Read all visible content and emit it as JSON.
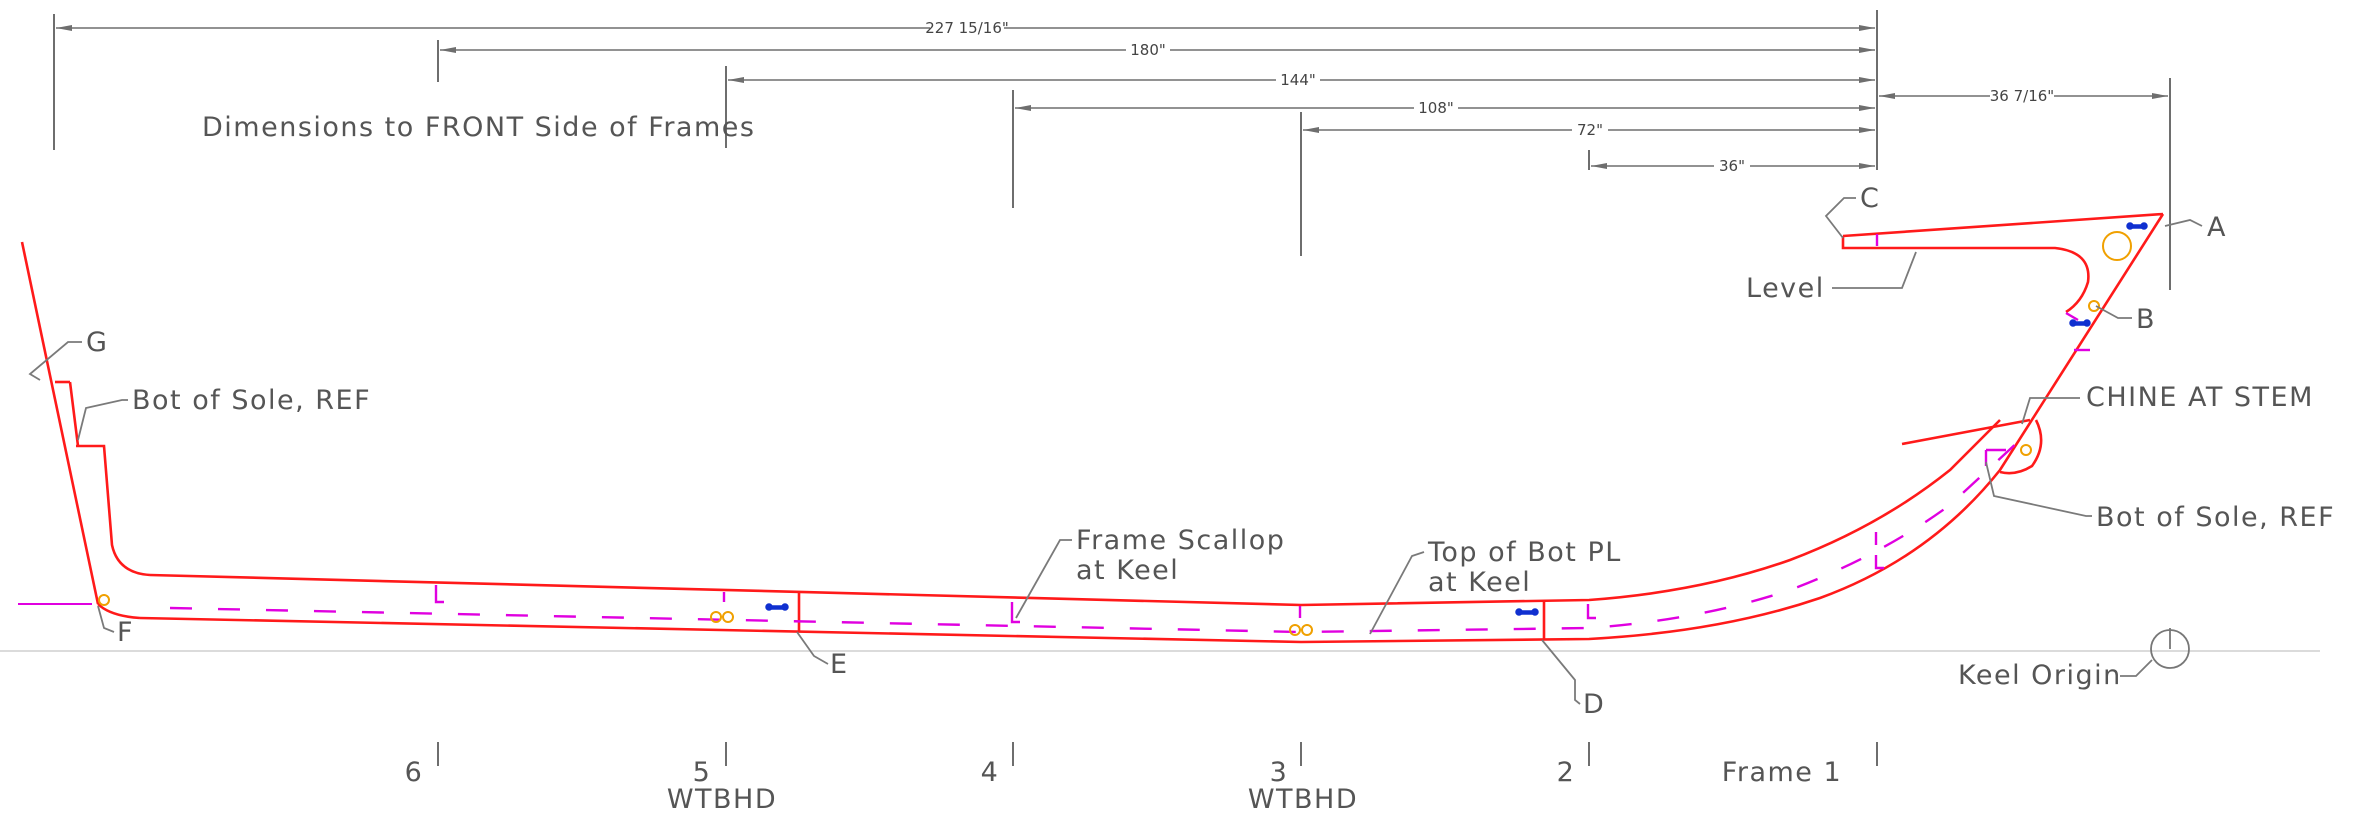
{
  "note": "Dimensions to FRONT Side of Frames",
  "dimensions": {
    "d227": "227 15/16\"",
    "d180": "180\"",
    "d144": "144\"",
    "d108": "108\"",
    "d72": "72\"",
    "d36": "36\"",
    "d36b": "36 7/16\""
  },
  "points": {
    "A": "A",
    "B": "B",
    "C": "C",
    "D": "D",
    "E": "E",
    "F": "F",
    "G": "G"
  },
  "labels": {
    "level": "Level",
    "chine": "CHINE AT STEM",
    "bot_sole_right": "Bot of Sole, REF",
    "bot_sole_left": "Bot of Sole, REF",
    "frame_scallop_1": "Frame Scallop",
    "frame_scallop_2": "at Keel",
    "top_bot_pl_1": "Top of Bot PL",
    "top_bot_pl_2": "at Keel",
    "keel_origin": "Keel Origin"
  },
  "frames": {
    "f6": "6",
    "f5": "5",
    "f5_sub": "WTBHD",
    "f4": "4",
    "f3": "3",
    "f3_sub": "WTBHD",
    "f2": "2",
    "f1": "Frame 1"
  },
  "colors": {
    "hull": "#ff1a1a",
    "frames_markers": "#e000e0",
    "holes": "#f0a000",
    "fittings": "#1030d0",
    "dimensions": "#6e6e6e"
  }
}
